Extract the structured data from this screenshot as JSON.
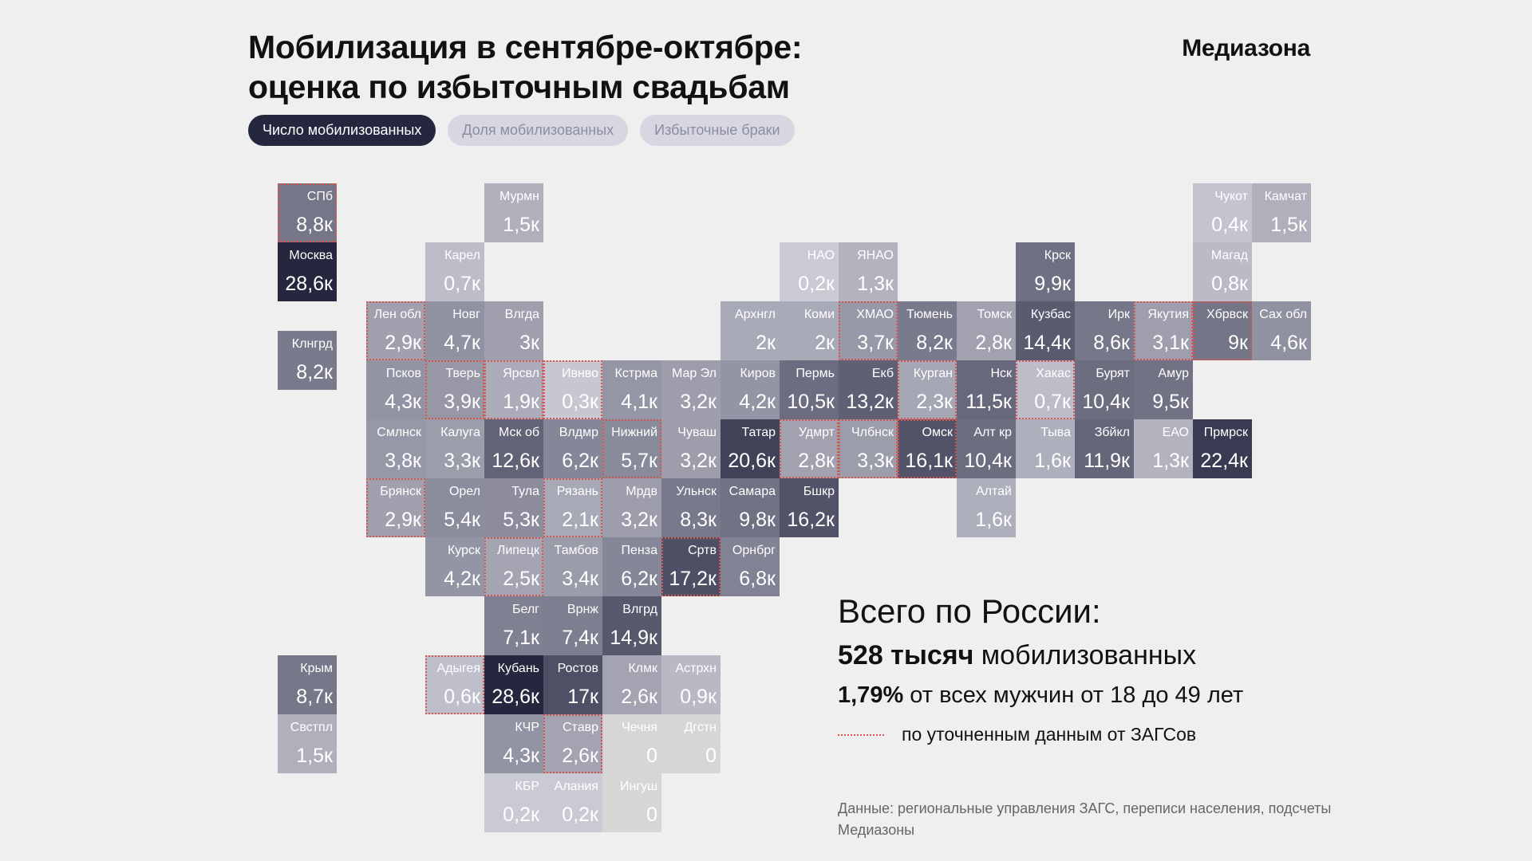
{
  "header": {
    "title_line1": "Мобилизация в сентябре-октябре:",
    "title_line2": "оценка по избыточным свадьбам",
    "brand": "Медиазона"
  },
  "tabs": [
    {
      "label": "Число мобилизованных",
      "active": true
    },
    {
      "label": "Доля мобилизованных",
      "active": false
    },
    {
      "label": "Избыточные браки",
      "active": false
    }
  ],
  "summary": {
    "title": "Всего по России:",
    "total_bold": "528 тысяч",
    "total_rest": " мобилизованных",
    "share_bold": "1,79%",
    "share_rest": " от всех мужчин от 18 до 49 лет",
    "legend_label": "по уточненным данным от ЗАГСов"
  },
  "source": "Данные: региональные управления ЗАГС, переписи населения, подсчеты Медиазоны",
  "colors": {
    "background": "#efefef",
    "scale_low": "#d9d9e3",
    "scale_high": "#25273f",
    "no_data": "#d6d6d6",
    "refined_outline": "#d9534f"
  },
  "chart_data": {
    "type": "heatmap",
    "title": "Мобилизация в сентябре-октябре: оценка по избыточным свадьбам",
    "metric": "Число мобилизованных, тыс.",
    "unit_suffix": "к",
    "value_range": [
      0,
      28.6
    ],
    "cells": [
      {
        "name": "СПб",
        "label": "8,8",
        "value": 8.8,
        "col": 0,
        "row": 0,
        "refined": true
      },
      {
        "name": "Москва",
        "label": "28,6",
        "value": 28.6,
        "col": 0,
        "row": 1
      },
      {
        "name": "Клнгрд",
        "label": "8,2",
        "value": 8.2,
        "col": 0,
        "row": 2.5
      },
      {
        "name": "Крым",
        "label": "8,7",
        "value": 8.7,
        "col": 0,
        "row": 8
      },
      {
        "name": "Свстпл",
        "label": "1,5",
        "value": 1.5,
        "col": 0,
        "row": 9
      },
      {
        "name": "Мурмн",
        "label": "1,5",
        "value": 1.5,
        "col": 3.5,
        "row": 0
      },
      {
        "name": "Карел",
        "label": "0,7",
        "value": 0.7,
        "col": 2.5,
        "row": 1
      },
      {
        "name": "Лен обл",
        "label": "2,9",
        "value": 2.9,
        "col": 1.5,
        "row": 2,
        "refined": true
      },
      {
        "name": "Новг",
        "label": "4,7",
        "value": 4.7,
        "col": 2.5,
        "row": 2
      },
      {
        "name": "Влгда",
        "label": "3",
        "value": 3.0,
        "col": 3.5,
        "row": 2
      },
      {
        "name": "Псков",
        "label": "4,3",
        "value": 4.3,
        "col": 1.5,
        "row": 3
      },
      {
        "name": "Тверь",
        "label": "3,9",
        "value": 3.9,
        "col": 2.5,
        "row": 3,
        "refined": true
      },
      {
        "name": "Ярсвл",
        "label": "1,9",
        "value": 1.9,
        "col": 3.5,
        "row": 3,
        "refined": true
      },
      {
        "name": "Ивнво",
        "label": "0,3",
        "value": 0.3,
        "col": 4.5,
        "row": 3,
        "refined": true
      },
      {
        "name": "Кстрма",
        "label": "4,1",
        "value": 4.1,
        "col": 5.5,
        "row": 3
      },
      {
        "name": "Мар Эл",
        "label": "3,2",
        "value": 3.2,
        "col": 6.5,
        "row": 3
      },
      {
        "name": "Киров",
        "label": "4,2",
        "value": 4.2,
        "col": 7.5,
        "row": 3
      },
      {
        "name": "Пермь",
        "label": "10,5",
        "value": 10.5,
        "col": 8.5,
        "row": 3
      },
      {
        "name": "Екб",
        "label": "13,2",
        "value": 13.2,
        "col": 9.5,
        "row": 3
      },
      {
        "name": "Курган",
        "label": "2,3",
        "value": 2.3,
        "col": 10.5,
        "row": 3,
        "refined": true
      },
      {
        "name": "Нск",
        "label": "11,5",
        "value": 11.5,
        "col": 11.5,
        "row": 3
      },
      {
        "name": "Хакас",
        "label": "0,7",
        "value": 0.7,
        "col": 12.5,
        "row": 3,
        "refined": true
      },
      {
        "name": "Бурят",
        "label": "10,4",
        "value": 10.4,
        "col": 13.5,
        "row": 3
      },
      {
        "name": "Амур",
        "label": "9,5",
        "value": 9.5,
        "col": 14.5,
        "row": 3
      },
      {
        "name": "Смлнск",
        "label": "3,8",
        "value": 3.8,
        "col": 1.5,
        "row": 4
      },
      {
        "name": "Калуга",
        "label": "3,3",
        "value": 3.3,
        "col": 2.5,
        "row": 4
      },
      {
        "name": "Мск об",
        "label": "12,6",
        "value": 12.6,
        "col": 3.5,
        "row": 4
      },
      {
        "name": "Влдмр",
        "label": "6,2",
        "value": 6.2,
        "col": 4.5,
        "row": 4
      },
      {
        "name": "Нижний",
        "label": "5,7",
        "value": 5.7,
        "col": 5.5,
        "row": 4,
        "refined": true
      },
      {
        "name": "Чуваш",
        "label": "3,2",
        "value": 3.2,
        "col": 6.5,
        "row": 4
      },
      {
        "name": "Татар",
        "label": "20,6",
        "value": 20.6,
        "col": 7.5,
        "row": 4
      },
      {
        "name": "Удмрт",
        "label": "2,8",
        "value": 2.8,
        "col": 8.5,
        "row": 4,
        "refined": true
      },
      {
        "name": "Члбнск",
        "label": "3,3",
        "value": 3.3,
        "col": 9.5,
        "row": 4,
        "refined": true
      },
      {
        "name": "Омск",
        "label": "16,1",
        "value": 16.1,
        "col": 10.5,
        "row": 4,
        "refined": true
      },
      {
        "name": "Алт кр",
        "label": "10,4",
        "value": 10.4,
        "col": 11.5,
        "row": 4
      },
      {
        "name": "Тыва",
        "label": "1,6",
        "value": 1.6,
        "col": 12.5,
        "row": 4
      },
      {
        "name": "Збйкл",
        "label": "11,9",
        "value": 11.9,
        "col": 13.5,
        "row": 4
      },
      {
        "name": "ЕАО",
        "label": "1,3",
        "value": 1.3,
        "col": 14.5,
        "row": 4
      },
      {
        "name": "Прмрск",
        "label": "22,4",
        "value": 22.4,
        "col": 15.5,
        "row": 4
      },
      {
        "name": "Брянск",
        "label": "2,9",
        "value": 2.9,
        "col": 1.5,
        "row": 5,
        "refined": true
      },
      {
        "name": "Орел",
        "label": "5,4",
        "value": 5.4,
        "col": 2.5,
        "row": 5
      },
      {
        "name": "Тула",
        "label": "5,3",
        "value": 5.3,
        "col": 3.5,
        "row": 5
      },
      {
        "name": "Рязань",
        "label": "2,1",
        "value": 2.1,
        "col": 4.5,
        "row": 5,
        "refined": true
      },
      {
        "name": "Мрдв",
        "label": "3,2",
        "value": 3.2,
        "col": 5.5,
        "row": 5
      },
      {
        "name": "Ульнск",
        "label": "8,3",
        "value": 8.3,
        "col": 6.5,
        "row": 5
      },
      {
        "name": "Самара",
        "label": "9,8",
        "value": 9.8,
        "col": 7.5,
        "row": 5
      },
      {
        "name": "Бшкр",
        "label": "16,2",
        "value": 16.2,
        "col": 8.5,
        "row": 5
      },
      {
        "name": "Алтай",
        "label": "1,6",
        "value": 1.6,
        "col": 11.5,
        "row": 5
      },
      {
        "name": "Курск",
        "label": "4,2",
        "value": 4.2,
        "col": 2.5,
        "row": 6
      },
      {
        "name": "Липецк",
        "label": "2,5",
        "value": 2.5,
        "col": 3.5,
        "row": 6,
        "refined": true
      },
      {
        "name": "Тамбов",
        "label": "3,4",
        "value": 3.4,
        "col": 4.5,
        "row": 6
      },
      {
        "name": "Пенза",
        "label": "6,2",
        "value": 6.2,
        "col": 5.5,
        "row": 6
      },
      {
        "name": "Сртв",
        "label": "17,2",
        "value": 17.2,
        "col": 6.5,
        "row": 6,
        "refined": true
      },
      {
        "name": "Орнбрг",
        "label": "6,8",
        "value": 6.8,
        "col": 7.5,
        "row": 6
      },
      {
        "name": "Белг",
        "label": "7,1",
        "value": 7.1,
        "col": 3.5,
        "row": 7
      },
      {
        "name": "Врнж",
        "label": "7,4",
        "value": 7.4,
        "col": 4.5,
        "row": 7
      },
      {
        "name": "Влгрд",
        "label": "14,9",
        "value": 14.9,
        "col": 5.5,
        "row": 7
      },
      {
        "name": "Адыгея",
        "label": "0,6",
        "value": 0.6,
        "col": 2.5,
        "row": 8,
        "refined": true
      },
      {
        "name": "Кубань",
        "label": "28,6",
        "value": 28.6,
        "col": 3.5,
        "row": 8
      },
      {
        "name": "Ростов",
        "label": "17",
        "value": 17.0,
        "col": 4.5,
        "row": 8
      },
      {
        "name": "Клмк",
        "label": "2,6",
        "value": 2.6,
        "col": 5.5,
        "row": 8
      },
      {
        "name": "Астрхн",
        "label": "0,9",
        "value": 0.9,
        "col": 6.5,
        "row": 8
      },
      {
        "name": "КЧР",
        "label": "4,3",
        "value": 4.3,
        "col": 3.5,
        "row": 9
      },
      {
        "name": "Ставр",
        "label": "2,6",
        "value": 2.6,
        "col": 4.5,
        "row": 9,
        "refined": true
      },
      {
        "name": "Чечня",
        "label": "0",
        "value": 0,
        "col": 5.5,
        "row": 9,
        "nodata": true
      },
      {
        "name": "Дгстн",
        "label": "0",
        "value": 0,
        "col": 6.5,
        "row": 9,
        "nodata": true
      },
      {
        "name": "КБР",
        "label": "0,2",
        "value": 0.2,
        "col": 3.5,
        "row": 10
      },
      {
        "name": "Алания",
        "label": "0,2",
        "value": 0.2,
        "col": 4.5,
        "row": 10
      },
      {
        "name": "Ингуш",
        "label": "0",
        "value": 0,
        "col": 5.5,
        "row": 10,
        "nodata": true
      },
      {
        "name": "НАО",
        "label": "0,2",
        "value": 0.2,
        "col": 8.5,
        "row": 1
      },
      {
        "name": "ЯНАО",
        "label": "1,3",
        "value": 1.3,
        "col": 9.5,
        "row": 1
      },
      {
        "name": "Архнгл",
        "label": "2",
        "value": 2.0,
        "col": 7.5,
        "row": 2
      },
      {
        "name": "Коми",
        "label": "2",
        "value": 2.0,
        "col": 8.5,
        "row": 2
      },
      {
        "name": "ХМАО",
        "label": "3,7",
        "value": 3.7,
        "col": 9.5,
        "row": 2,
        "refined": true
      },
      {
        "name": "Тюмень",
        "label": "8,2",
        "value": 8.2,
        "col": 10.5,
        "row": 2
      },
      {
        "name": "Томск",
        "label": "2,8",
        "value": 2.8,
        "col": 11.5,
        "row": 2
      },
      {
        "name": "Крск",
        "label": "9,9",
        "value": 9.9,
        "col": 12.5,
        "row": 1
      },
      {
        "name": "Кузбас",
        "label": "14,4",
        "value": 14.4,
        "col": 12.5,
        "row": 2
      },
      {
        "name": "Ирк",
        "label": "8,6",
        "value": 8.6,
        "col": 13.5,
        "row": 2
      },
      {
        "name": "Якутия",
        "label": "3,1",
        "value": 3.1,
        "col": 14.5,
        "row": 2,
        "refined": true
      },
      {
        "name": "Хбрвск",
        "label": "9",
        "value": 9.0,
        "col": 15.5,
        "row": 2,
        "refined": true
      },
      {
        "name": "Сах обл",
        "label": "4,6",
        "value": 4.6,
        "col": 16.5,
        "row": 2
      },
      {
        "name": "Магад",
        "label": "0,8",
        "value": 0.8,
        "col": 15.5,
        "row": 1
      },
      {
        "name": "Чукот",
        "label": "0,4",
        "value": 0.4,
        "col": 15.5,
        "row": 0
      },
      {
        "name": "Камчат",
        "label": "1,5",
        "value": 1.5,
        "col": 16.5,
        "row": 0
      }
    ]
  }
}
